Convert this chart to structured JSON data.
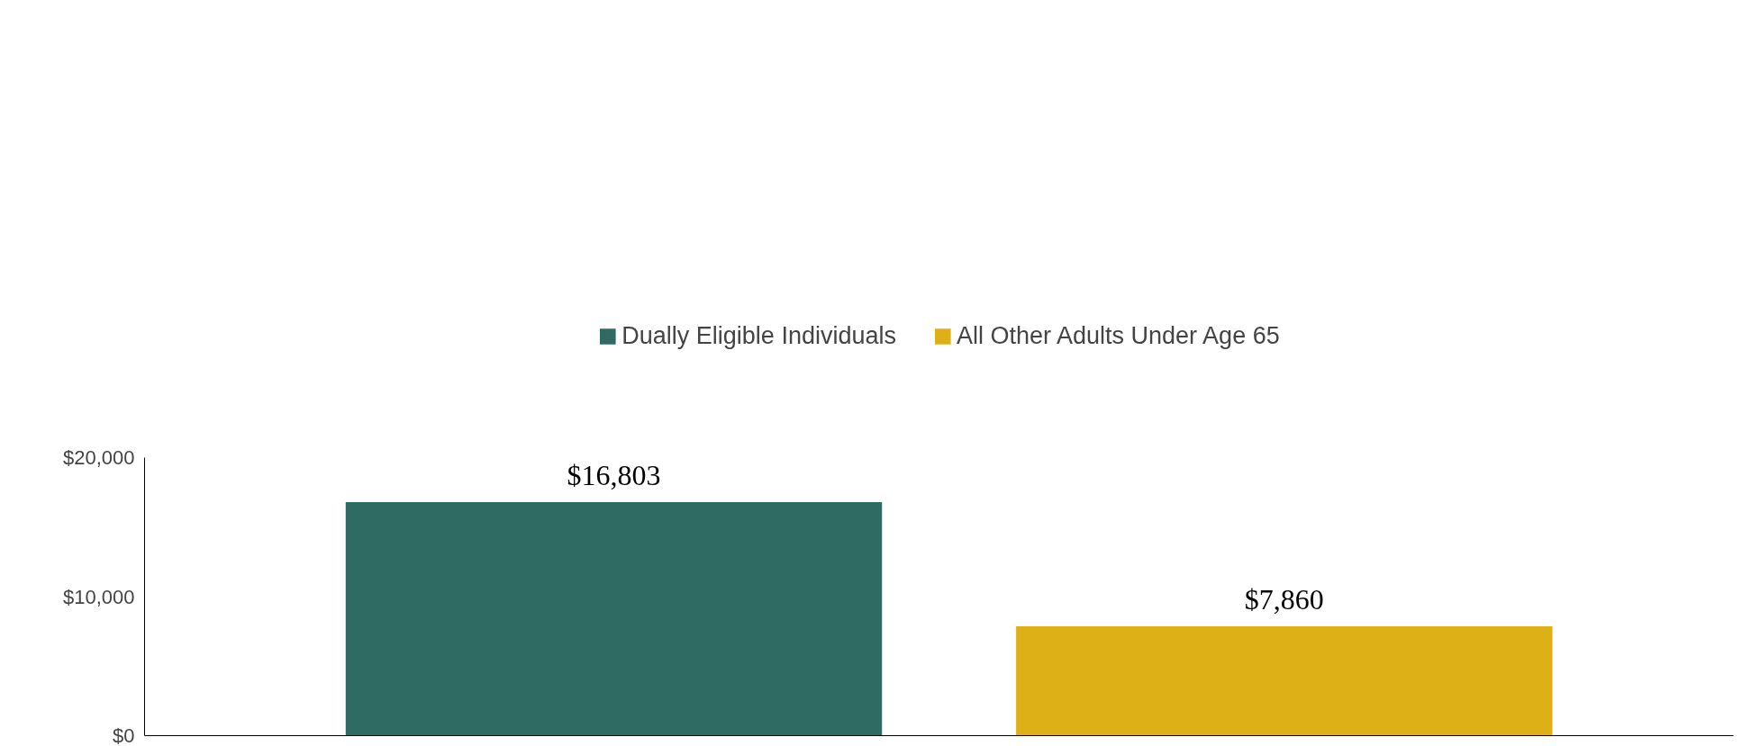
{
  "chart_data": {
    "type": "bar",
    "stacked": true,
    "categories": [
      null,
      null
    ],
    "series": [
      {
        "name": "Dually Eligible Individuals",
        "color": "#306b63",
        "values": [
          16803,
          null
        ]
      },
      {
        "name": "All Other Adults Under Age 65",
        "color": "#deb018",
        "values": [
          null,
          7860
        ]
      }
    ],
    "ylim": [
      0,
      20000
    ],
    "yticks": [
      {
        "value": 0,
        "label": "$0"
      },
      {
        "value": 10000,
        "label": "$10,000"
      },
      {
        "value": 20000,
        "label": "$20,000"
      }
    ],
    "value_labels": [
      [
        "$16,803",
        null
      ],
      [
        null,
        "$7,860"
      ]
    ],
    "grid": false,
    "legend": "top"
  }
}
